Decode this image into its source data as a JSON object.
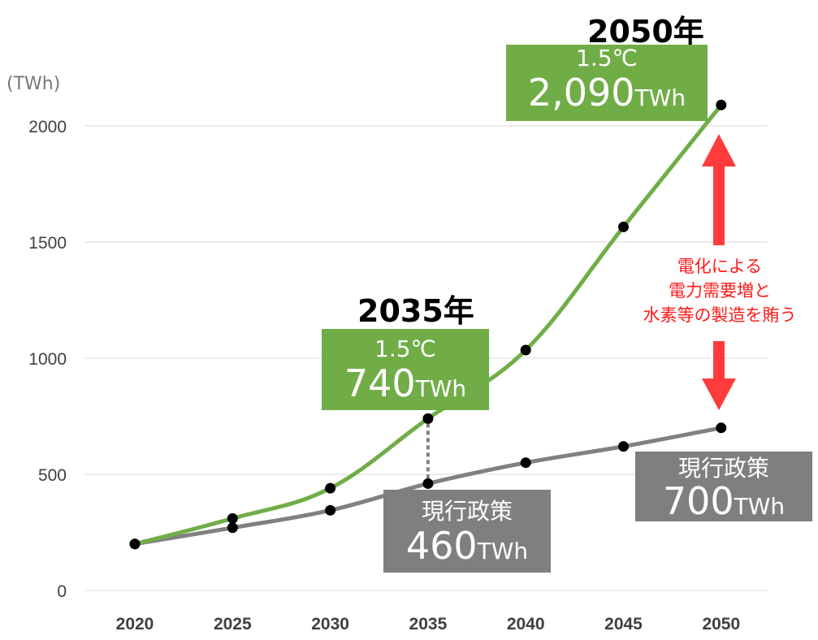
{
  "chart_data": {
    "type": "line",
    "unit_label": "(TWh)",
    "x": [
      2020,
      2025,
      2030,
      2035,
      2040,
      2045,
      2050
    ],
    "x_ticks": [
      "2020",
      "2025",
      "2030",
      "2035",
      "2040",
      "2045",
      "2050"
    ],
    "y_ticks": [
      "0",
      "500",
      "1000",
      "1500",
      "2000"
    ],
    "ylim": [
      0,
      2000
    ],
    "grid": "horizontal",
    "series": [
      {
        "name": "1.5℃",
        "color": "#70ad47",
        "values": [
          200,
          310,
          440,
          740,
          1035,
          1565,
          2090
        ]
      },
      {
        "name": "現行政策",
        "color": "#808080",
        "values": [
          200,
          270,
          345,
          460,
          550,
          620,
          700
        ]
      }
    ]
  },
  "annotations": {
    "year_2035": "2035年",
    "year_2050": "2050年",
    "box_2035_green": {
      "line1": "1.5℃",
      "value": "740",
      "unit": "TWh"
    },
    "box_2050_green": {
      "line1": "1.5℃",
      "value": "2,090",
      "unit": "TWh"
    },
    "box_2035_gray": {
      "line1": "現行政策",
      "value": "460",
      "unit": "TWh"
    },
    "box_2050_gray": {
      "line1": "現行政策",
      "value": "700",
      "unit": "TWh"
    },
    "note_lines": [
      "電化による",
      "電力需要増と",
      "水素等の製造を賄う"
    ],
    "note_color": "#ff3333"
  }
}
